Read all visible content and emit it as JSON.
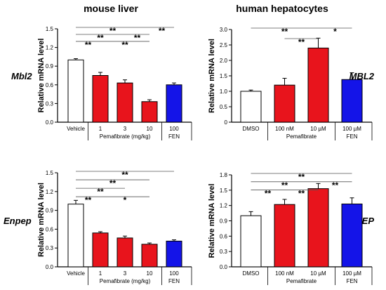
{
  "column_titles": {
    "left": "mouse liver",
    "right": "human hepatocytes"
  },
  "colors": {
    "control": "#ffffff",
    "pemafibrate": "#e8141c",
    "fenofibrate": "#1414e8",
    "axis": "#000000"
  },
  "chart_data": [
    {
      "type": "bar",
      "id": "mouse-mbl2",
      "gene_label": "Mbl2",
      "ylabel": "Relative mRNA level",
      "ylim": [
        0,
        1.5
      ],
      "yticks": [
        "0.0",
        "0.3",
        "0.6",
        "0.9",
        "1.2",
        "1.5"
      ],
      "categories": [
        "Vehicle",
        "1",
        "3",
        "10",
        "100"
      ],
      "group_labels": [
        {
          "text": "Vehicle",
          "from": 0,
          "to": 0
        },
        {
          "text": "Pemafibrate (mg/kg)",
          "from": 1,
          "to": 3
        },
        {
          "text": "FEN",
          "from": 4,
          "to": 4
        }
      ],
      "values": [
        1.0,
        0.75,
        0.63,
        0.33,
        0.6
      ],
      "errors": [
        0.02,
        0.05,
        0.05,
        0.03,
        0.03
      ],
      "fills": [
        "control",
        "pemafibrate",
        "pemafibrate",
        "pemafibrate",
        "fenofibrate"
      ],
      "significance": [
        {
          "from": 0,
          "to": 3,
          "label": "**"
        },
        {
          "from": 0,
          "to": 2,
          "label": "**"
        },
        {
          "from": 2,
          "to": 3,
          "label": "**"
        },
        {
          "from": 0,
          "to": 1,
          "label": "**"
        },
        {
          "from": 1,
          "to": 3,
          "label": "**"
        },
        {
          "from": 3,
          "to": 4,
          "label": "**"
        }
      ]
    },
    {
      "type": "bar",
      "id": "human-mbl2",
      "gene_label": "MBL2",
      "ylabel": "Relative mRNA level",
      "ylim": [
        0,
        3.0
      ],
      "yticks": [
        "0",
        "0.5",
        "1.0",
        "1.5",
        "2.0",
        "2.5",
        "3.0"
      ],
      "categories": [
        "DMSO",
        "100 nM",
        "10 µM",
        "100 µM"
      ],
      "group_labels": [
        {
          "text": "DMSO",
          "from": 0,
          "to": 0
        },
        {
          "text": "Pemafibrate",
          "from": 1,
          "to": 2
        },
        {
          "text": "FEN",
          "from": 3,
          "to": 3
        }
      ],
      "values": [
        1.0,
        1.2,
        2.4,
        1.38
      ],
      "errors": [
        0.04,
        0.22,
        0.32,
        0.22
      ],
      "fills": [
        "control",
        "pemafibrate",
        "pemafibrate",
        "fenofibrate"
      ],
      "significance": [
        {
          "from": 0,
          "to": 2,
          "label": "**"
        },
        {
          "from": 1,
          "to": 2,
          "label": "**"
        },
        {
          "from": 2,
          "to": 3,
          "label": "*"
        }
      ]
    },
    {
      "type": "bar",
      "id": "mouse-enpep",
      "gene_label": "Enpep",
      "ylabel": "Relative mRNA level",
      "ylim": [
        0,
        1.5
      ],
      "yticks": [
        "0.0",
        "0.3",
        "0.6",
        "0.9",
        "1.2",
        "1.5"
      ],
      "categories": [
        "Vehicle",
        "1",
        "3",
        "10",
        "100"
      ],
      "group_labels": [
        {
          "text": "Vehicle",
          "from": 0,
          "to": 0
        },
        {
          "text": "Pemafibrate (mg/kg)",
          "from": 1,
          "to": 3
        },
        {
          "text": "FEN",
          "from": 4,
          "to": 4
        }
      ],
      "values": [
        1.0,
        0.54,
        0.46,
        0.36,
        0.41
      ],
      "errors": [
        0.06,
        0.02,
        0.03,
        0.02,
        0.02
      ],
      "fills": [
        "control",
        "pemafibrate",
        "pemafibrate",
        "pemafibrate",
        "fenofibrate"
      ],
      "significance": [
        {
          "from": 0,
          "to": 4,
          "label": "**"
        },
        {
          "from": 0,
          "to": 3,
          "label": "**"
        },
        {
          "from": 0,
          "to": 2,
          "label": "**"
        },
        {
          "from": 0,
          "to": 1,
          "label": "**"
        },
        {
          "from": 1,
          "to": 3,
          "label": "*"
        }
      ]
    },
    {
      "type": "bar",
      "id": "human-enpep",
      "gene_label": "ENPEP",
      "ylabel": "Relative mRNA level",
      "ylim": [
        0,
        1.8
      ],
      "yticks": [
        "0.0",
        "0.3",
        "0.6",
        "0.9",
        "1.2",
        "1.5",
        "1.8"
      ],
      "categories": [
        "DMSO",
        "100 nM",
        "10 µM",
        "100 µM"
      ],
      "group_labels": [
        {
          "text": "DMSO",
          "from": 0,
          "to": 0
        },
        {
          "text": "Pemafibrate",
          "from": 1,
          "to": 2
        },
        {
          "text": "FEN",
          "from": 3,
          "to": 3
        }
      ],
      "values": [
        1.0,
        1.22,
        1.53,
        1.23
      ],
      "errors": [
        0.08,
        0.1,
        0.1,
        0.12
      ],
      "fills": [
        "control",
        "pemafibrate",
        "pemafibrate",
        "fenofibrate"
      ],
      "significance": [
        {
          "from": 0,
          "to": 3,
          "label": "**"
        },
        {
          "from": 0,
          "to": 2,
          "label": "**"
        },
        {
          "from": 0,
          "to": 1,
          "label": "**"
        },
        {
          "from": 1,
          "to": 2,
          "label": "**"
        },
        {
          "from": 2,
          "to": 3,
          "label": "**"
        }
      ]
    }
  ]
}
